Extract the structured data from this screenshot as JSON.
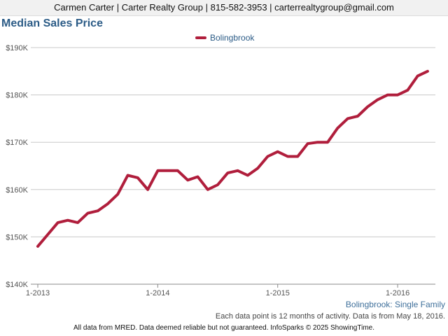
{
  "header": {
    "contact_line": "Carmen Carter | Carter Realty Group | 815-582-3953 | carterrealtygroup@gmail.com"
  },
  "chart_data": {
    "type": "line",
    "title": "Median Sales Price",
    "x_tick_labels": [
      "1-2013",
      "1-2014",
      "1-2015",
      "1-2016"
    ],
    "y_tick_labels": [
      "$140K",
      "$150K",
      "$160K",
      "$170K",
      "$180K",
      "$190K"
    ],
    "ylim": [
      140000,
      190000
    ],
    "y_ticks": [
      140000,
      150000,
      160000,
      170000,
      180000,
      190000
    ],
    "grid": "horizontal",
    "legend_position": "top-center",
    "series": [
      {
        "name": "Bolingbrook",
        "color": "#b01e3c",
        "x": [
          "2013-01",
          "2013-02",
          "2013-03",
          "2013-04",
          "2013-05",
          "2013-06",
          "2013-07",
          "2013-08",
          "2013-09",
          "2013-10",
          "2013-11",
          "2013-12",
          "2014-01",
          "2014-02",
          "2014-03",
          "2014-04",
          "2014-05",
          "2014-06",
          "2014-07",
          "2014-08",
          "2014-09",
          "2014-10",
          "2014-11",
          "2014-12",
          "2015-01",
          "2015-02",
          "2015-03",
          "2015-04",
          "2015-05",
          "2015-06",
          "2015-07",
          "2015-08",
          "2015-09",
          "2015-10",
          "2015-11",
          "2015-12",
          "2016-01",
          "2016-02",
          "2016-03",
          "2016-04"
        ],
        "values": [
          148000,
          150500,
          153000,
          153500,
          153000,
          155000,
          155500,
          157000,
          159000,
          163000,
          162500,
          160000,
          164000,
          164000,
          164000,
          162000,
          162700,
          160000,
          161000,
          163500,
          164000,
          163000,
          164500,
          167000,
          168000,
          167000,
          167000,
          169700,
          170000,
          170000,
          173000,
          175000,
          175500,
          177500,
          179000,
          180000,
          180000,
          181000,
          184000,
          185000
        ]
      }
    ]
  },
  "footer": {
    "area_label": "Bolingbrook: Single Family",
    "note": "Each data point is 12 months of activity. Data is from May 18, 2016.",
    "disclaimer": "All data from MRED. Data deemed reliable but not guaranteed. InfoSparks © 2025 ShowingTime."
  }
}
